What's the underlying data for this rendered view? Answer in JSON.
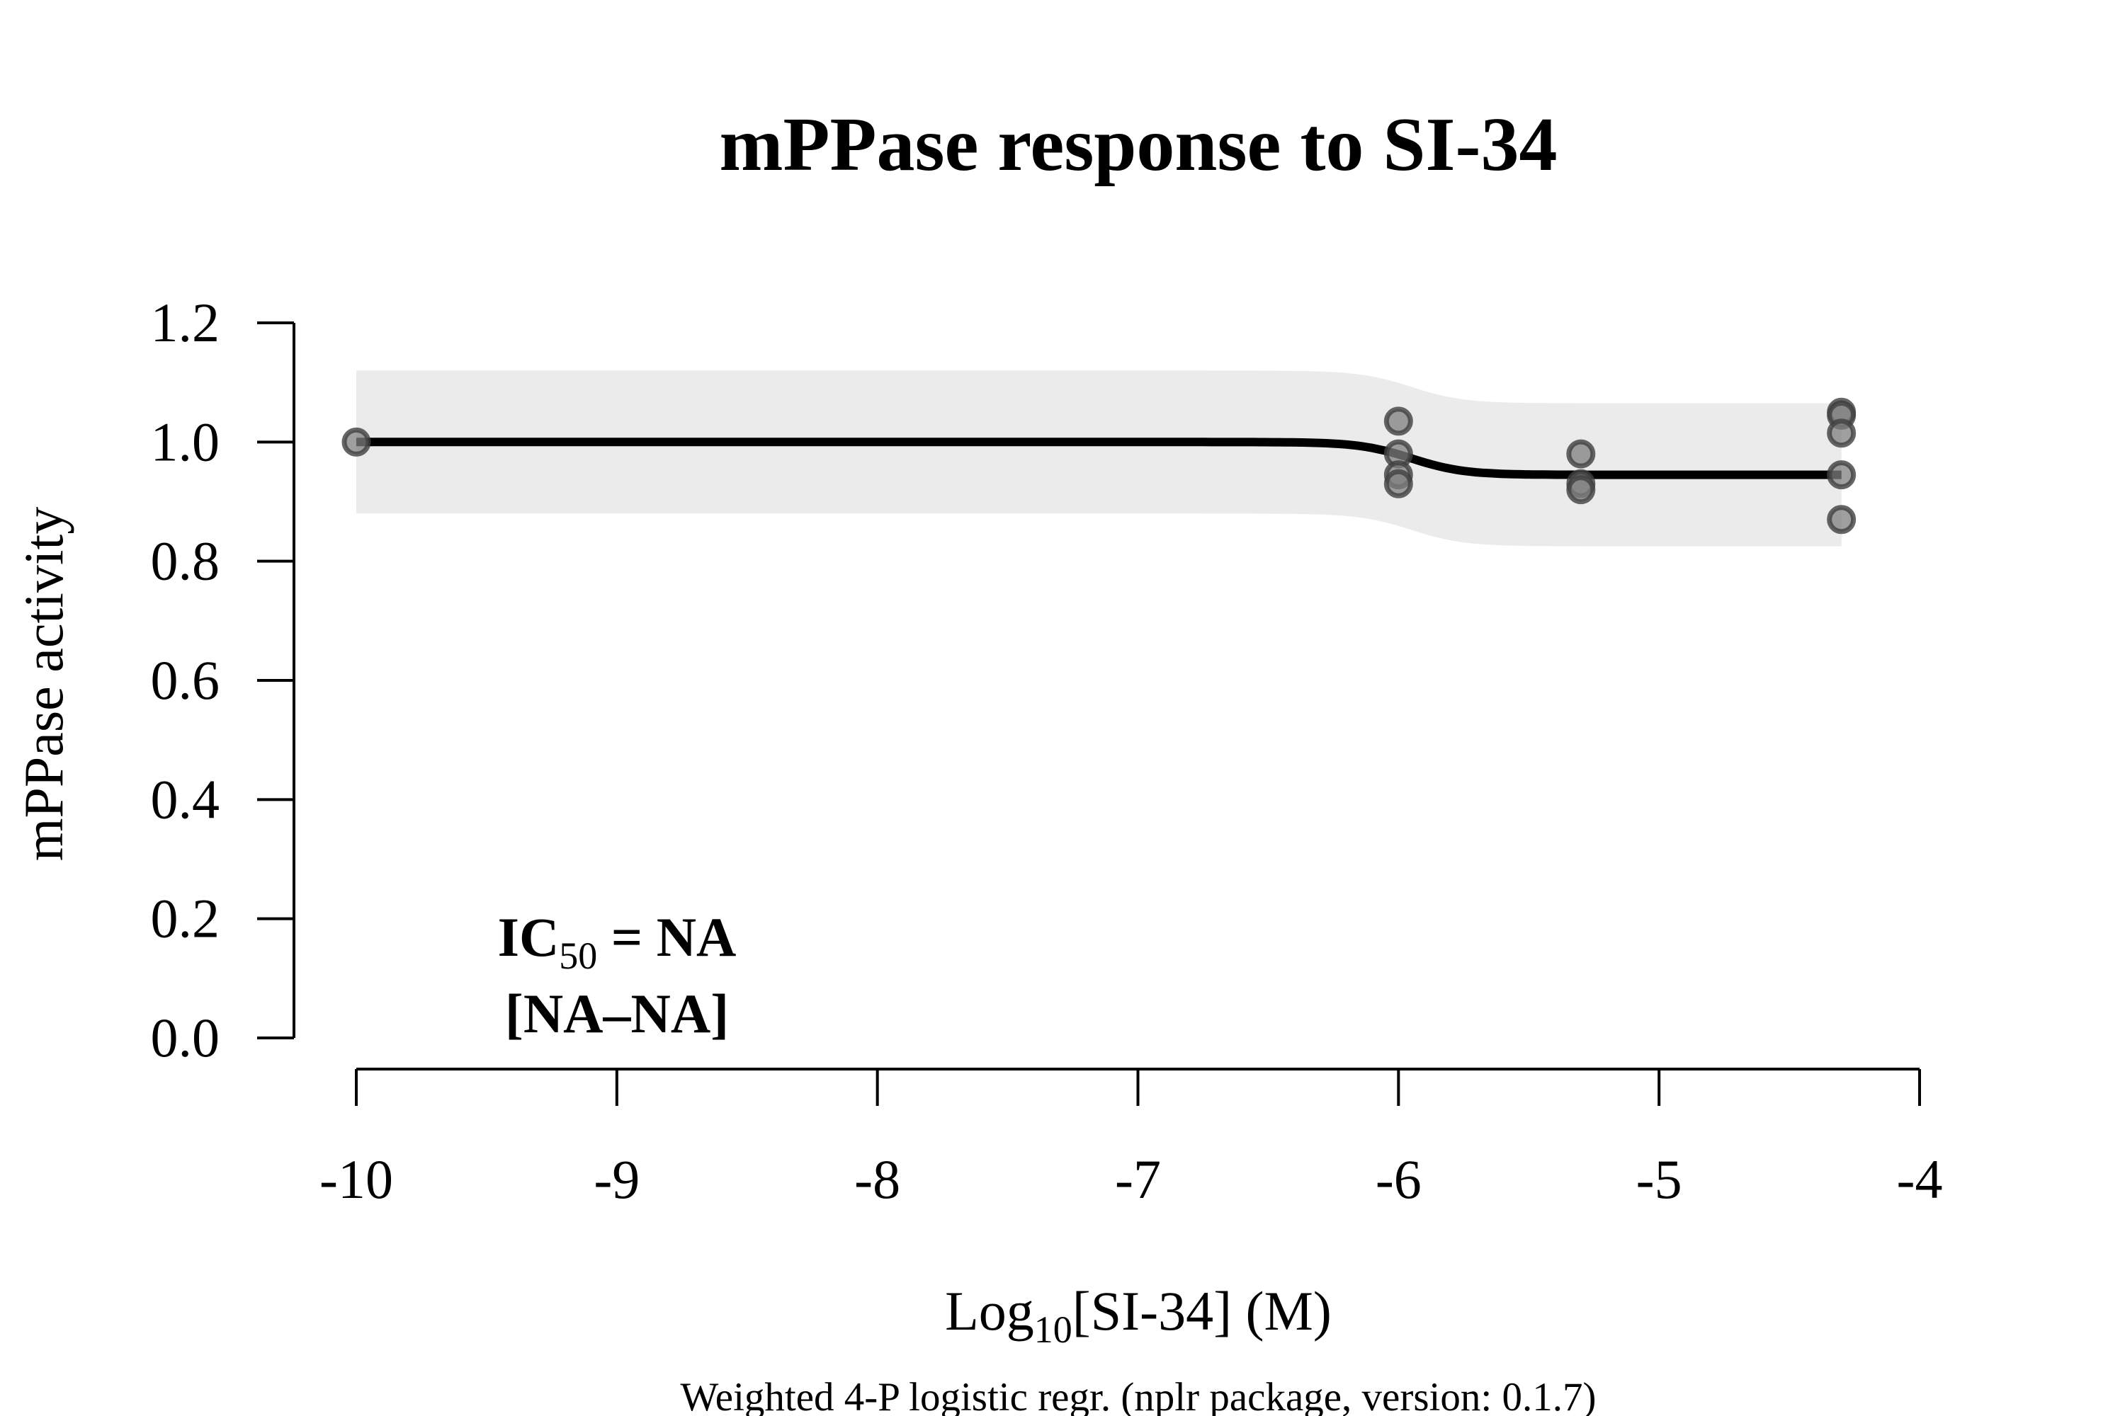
{
  "chart_data": {
    "type": "scatter",
    "title": "mPPase response to SI-34",
    "xlabel": {
      "prefix": "Log",
      "subscript": "10",
      "suffix": "[SI-34] (M)"
    },
    "ylabel": "mPPase activity",
    "footnote": "Weighted 4-P logistic regr. (nplr package, version: 0.1.7)",
    "annotation": {
      "line1_prefix": "IC",
      "line1_subscript": "50",
      "line1_suffix": " = NA",
      "line2": "[NA–NA]"
    },
    "xlim": [
      -10,
      -4
    ],
    "ylim": [
      0,
      1.2
    ],
    "x_ticks": [
      -10,
      -9,
      -8,
      -7,
      -6,
      -5,
      -4
    ],
    "x_tick_labels": [
      "-10",
      "-9",
      "-8",
      "-7",
      "-6",
      "-5",
      "-4"
    ],
    "y_ticks": [
      0.0,
      0.2,
      0.4,
      0.6,
      0.8,
      1.0,
      1.2
    ],
    "y_tick_labels": [
      "0.0",
      "0.2",
      "0.4",
      "0.6",
      "0.8",
      "1.0",
      "1.2"
    ],
    "points": [
      {
        "x": -10,
        "y": 1.0
      },
      {
        "x": -6,
        "y": 1.035
      },
      {
        "x": -6,
        "y": 0.98
      },
      {
        "x": -6,
        "y": 0.945
      },
      {
        "x": -6,
        "y": 0.93
      },
      {
        "x": -5.3,
        "y": 0.98
      },
      {
        "x": -5.3,
        "y": 0.93
      },
      {
        "x": -5.3,
        "y": 0.92
      },
      {
        "x": -4.3,
        "y": 1.05
      },
      {
        "x": -4.3,
        "y": 1.045
      },
      {
        "x": -4.3,
        "y": 1.015
      },
      {
        "x": -4.3,
        "y": 0.945
      },
      {
        "x": -4.3,
        "y": 0.87
      }
    ],
    "fit": {
      "top": 1.0,
      "bottom": 0.945,
      "xmid": -5.95,
      "slope": 10,
      "x_range": [
        -10,
        -4.3
      ]
    },
    "confidence_band": {
      "half_width": 0.12
    },
    "colors": {
      "band": "#ebebeb",
      "curve": "#000000",
      "point_fill": "#7f7f7f",
      "point_stroke": "#404040"
    }
  }
}
